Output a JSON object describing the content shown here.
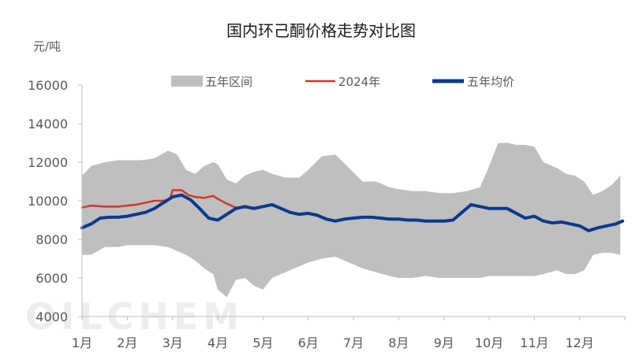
{
  "chart_data": {
    "type": "area",
    "title": "国内环己酮价格走势对比图",
    "ylabel": "元/吨",
    "xlabel": "",
    "ylim": [
      4000,
      16000
    ],
    "yticks": [
      "4000",
      "6000",
      "8000",
      "10000",
      "12000",
      "14000",
      "16000"
    ],
    "categories": [
      "1月",
      "2月",
      "3月",
      "4月",
      "5月",
      "6月",
      "7月",
      "8月",
      "9月",
      "10月",
      "11月",
      "12月"
    ],
    "grid": false,
    "legend_position": "top",
    "watermark": "OILCHEM",
    "colors": {
      "range": "#bfbfbf",
      "y2024": "#d0392b",
      "avg": "#0b3a8c"
    },
    "legend": [
      {
        "name": "五年区间",
        "kind": "area"
      },
      {
        "name": "2024年",
        "kind": "thin-line"
      },
      {
        "name": "五年均价",
        "kind": "thick-line"
      }
    ],
    "series": [
      {
        "name": "五年区间",
        "kind": "band",
        "x": [
          0,
          0.2,
          0.5,
          0.8,
          1.0,
          1.3,
          1.6,
          1.9,
          2.1,
          2.3,
          2.5,
          2.7,
          2.9,
          3.0,
          3.2,
          3.4,
          3.6,
          3.8,
          4.0,
          4.2,
          4.5,
          4.8,
          5.0,
          5.3,
          5.6,
          5.9,
          6.2,
          6.5,
          6.8,
          7.0,
          7.3,
          7.6,
          7.9,
          8.2,
          8.5,
          8.8,
          9.0,
          9.2,
          9.4,
          9.6,
          9.8,
          10.0,
          10.2,
          10.5,
          10.7,
          10.9,
          11.1,
          11.3,
          11.5,
          11.7,
          11.9
        ],
        "high": [
          11300,
          11800,
          12000,
          12100,
          12100,
          12100,
          12200,
          12600,
          12400,
          11600,
          11400,
          11800,
          12000,
          11900,
          11100,
          10900,
          11300,
          11500,
          11600,
          11400,
          11200,
          11200,
          11600,
          12300,
          12400,
          11700,
          11000,
          11000,
          10700,
          10600,
          10500,
          10500,
          10400,
          10400,
          10500,
          10700,
          11800,
          13000,
          13000,
          12900,
          12900,
          12800,
          12000,
          11700,
          11400,
          11300,
          11000,
          10300,
          10500,
          10800,
          11300
        ],
        "low": [
          7200,
          7200,
          7600,
          7600,
          7700,
          7700,
          7700,
          7600,
          7400,
          7200,
          6900,
          6500,
          6200,
          5400,
          5000,
          5900,
          6000,
          5600,
          5400,
          6000,
          6300,
          6600,
          6800,
          7000,
          7100,
          6800,
          6500,
          6300,
          6100,
          6000,
          6000,
          6100,
          6000,
          6000,
          6000,
          6000,
          6100,
          6100,
          6100,
          6100,
          6100,
          6100,
          6200,
          6400,
          6200,
          6200,
          6400,
          7200,
          7300,
          7300,
          7200
        ]
      },
      {
        "name": "2024年",
        "kind": "line",
        "x": [
          0,
          0.2,
          0.5,
          0.8,
          1.0,
          1.2,
          1.4,
          1.6,
          1.8,
          1.95,
          2.0,
          2.2,
          2.35,
          2.5,
          2.7,
          2.9,
          3.0,
          3.2,
          3.4,
          3.6,
          3.8,
          3.95
        ],
        "values": [
          9650,
          9750,
          9700,
          9700,
          9750,
          9800,
          9900,
          10000,
          10000,
          10100,
          10550,
          10550,
          10300,
          10200,
          10150,
          10250,
          10100,
          9850,
          9650,
          9650,
          9650,
          9650
        ]
      },
      {
        "name": "五年均价",
        "kind": "line",
        "x": [
          0,
          0.2,
          0.4,
          0.6,
          0.8,
          1.0,
          1.2,
          1.4,
          1.6,
          1.8,
          2.0,
          2.2,
          2.4,
          2.6,
          2.8,
          3.0,
          3.2,
          3.4,
          3.6,
          3.8,
          4.0,
          4.2,
          4.4,
          4.6,
          4.8,
          5.0,
          5.2,
          5.4,
          5.6,
          5.8,
          6.0,
          6.2,
          6.4,
          6.6,
          6.8,
          7.0,
          7.2,
          7.4,
          7.6,
          7.8,
          8.0,
          8.2,
          8.4,
          8.6,
          8.8,
          9.0,
          9.2,
          9.4,
          9.6,
          9.8,
          10.0,
          10.2,
          10.4,
          10.6,
          10.8,
          11.0,
          11.2,
          11.4,
          11.6,
          11.8,
          11.95
        ],
        "values": [
          8600,
          8800,
          9100,
          9150,
          9150,
          9200,
          9300,
          9400,
          9600,
          9900,
          10200,
          10300,
          10050,
          9600,
          9100,
          9000,
          9300,
          9600,
          9700,
          9600,
          9700,
          9800,
          9600,
          9400,
          9300,
          9350,
          9250,
          9050,
          8950,
          9050,
          9100,
          9150,
          9150,
          9100,
          9050,
          9050,
          9000,
          9000,
          8950,
          8950,
          8950,
          9000,
          9400,
          9800,
          9700,
          9600,
          9600,
          9600,
          9350,
          9100,
          9200,
          8950,
          8850,
          8900,
          8800,
          8700,
          8450,
          8600,
          8700,
          8800,
          8950
        ]
      }
    ]
  }
}
